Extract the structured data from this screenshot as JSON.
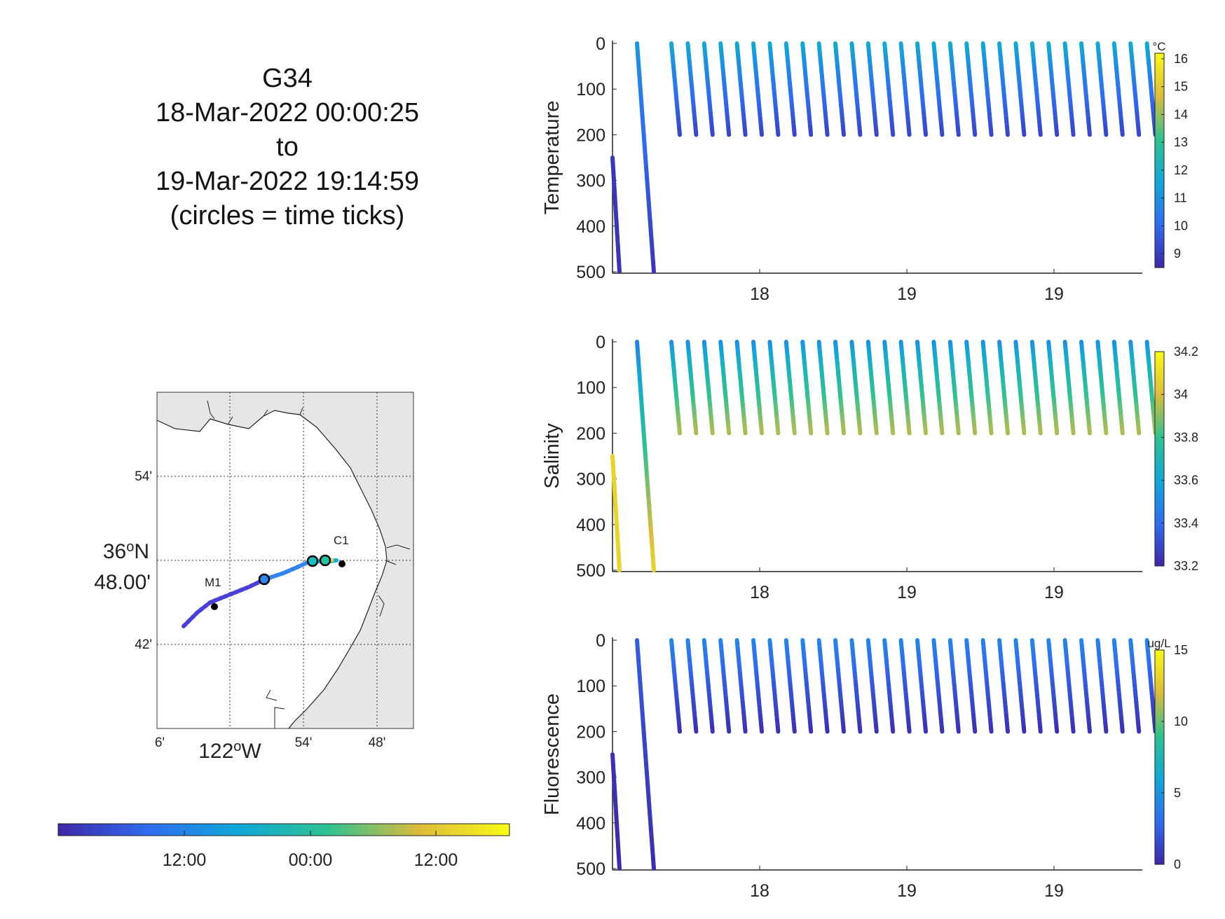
{
  "title": {
    "glider": "G34",
    "start": "18-Mar-2022 00:00:25",
    "to": "to",
    "end": "19-Mar-2022 19:14:59",
    "note": "(circles = time ticks)"
  },
  "map": {
    "lon_ticks": [
      "6'",
      "54'",
      "48'"
    ],
    "lon_main_label": "122",
    "lon_main_suffix": "W",
    "lat_ticks": [
      "54'",
      "42'"
    ],
    "lat_main_line1": "36",
    "lat_main_suffix": "N",
    "lat_main_line2": "48.00'",
    "degree_mark": "o",
    "stations": [
      "M1",
      "C1"
    ],
    "colors": {
      "land": "#e6e6e6",
      "coast": "#222222",
      "station": "#000000"
    }
  },
  "time_colorbar": {
    "tick_labels": [
      "12:00",
      "00:00",
      "12:00"
    ],
    "colors": [
      "#3e26a8",
      "#2f96e8",
      "#13beb8",
      "#7ccd3a",
      "#f7ba3c",
      "#f9fb15"
    ]
  },
  "chart_data": [
    {
      "type": "scatter",
      "title": "",
      "xlabel": "",
      "ylabel": "Temperature",
      "x_tick_labels": [
        "18",
        "19",
        "19"
      ],
      "y_ticks": [
        0,
        100,
        200,
        300,
        400,
        500
      ],
      "ylim": [
        0,
        500
      ],
      "y_reversed": true,
      "colorbar": {
        "unit": "°C",
        "ticks": [
          9,
          10,
          11,
          12,
          13,
          14,
          15,
          16
        ],
        "range": [
          8.5,
          16.2
        ]
      },
      "series": [
        {
          "profile": 1,
          "depth_range": [
            250,
            500
          ],
          "value_top": 8.9,
          "value_bottom": 8.8
        },
        {
          "profile": 2,
          "depth_range": [
            0,
            500
          ],
          "value_top": 11.2,
          "value_bottom": 8.9
        },
        {
          "profile_group": "profiles 3-32",
          "count": 30,
          "depth_range": [
            0,
            200
          ],
          "value_top": 11.8,
          "value_bottom": 9.2
        }
      ]
    },
    {
      "type": "scatter",
      "title": "",
      "xlabel": "",
      "ylabel": "Salinity",
      "x_tick_labels": [
        "18",
        "19",
        "19"
      ],
      "y_ticks": [
        0,
        100,
        200,
        300,
        400,
        500
      ],
      "ylim": [
        0,
        500
      ],
      "y_reversed": true,
      "colorbar": {
        "unit": "",
        "ticks": [
          33.2,
          33.4,
          33.6,
          33.8,
          34,
          34.2
        ],
        "range": [
          33.2,
          34.2
        ]
      },
      "series": [
        {
          "profile": 1,
          "depth_range": [
            250,
            500
          ],
          "value_top": 34.08,
          "value_bottom": 34.08
        },
        {
          "profile": 2,
          "depth_range": [
            0,
            500
          ],
          "value_top": 33.45,
          "value_bottom": 34.08
        },
        {
          "profile_group": "profiles 3-32",
          "count": 30,
          "depth_range": [
            0,
            200
          ],
          "value_top": 33.5,
          "value_bottom": 33.95
        }
      ]
    },
    {
      "type": "scatter",
      "title": "",
      "xlabel": "",
      "ylabel": "Fluorescence",
      "x_tick_labels": [
        "18",
        "19",
        "19"
      ],
      "y_ticks": [
        0,
        100,
        200,
        300,
        400,
        500
      ],
      "ylim": [
        0,
        500
      ],
      "y_reversed": true,
      "colorbar": {
        "unit": "ug/L",
        "ticks": [
          0,
          5,
          10,
          15
        ],
        "range": [
          0,
          15
        ]
      },
      "series": [
        {
          "profile": 1,
          "depth_range": [
            250,
            500
          ],
          "value_top": 0.5,
          "value_bottom": 0.2
        },
        {
          "profile": 2,
          "depth_range": [
            0,
            500
          ],
          "value_top": 2.5,
          "value_bottom": 0.3
        },
        {
          "profile_group": "profiles 3-32",
          "count": 30,
          "depth_range": [
            0,
            200
          ],
          "value_top": 4.5,
          "value_bottom": 0.5
        }
      ]
    }
  ]
}
